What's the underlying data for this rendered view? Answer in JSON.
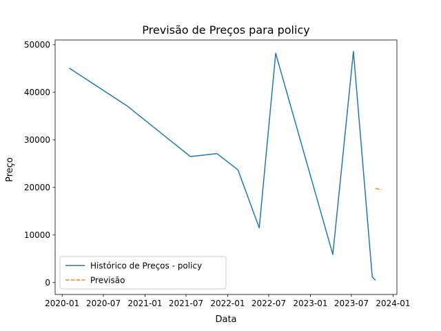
{
  "chart_data": {
    "type": "line",
    "title": "Previsão de Preços para policy",
    "xlabel": "Data",
    "ylabel": "Preço",
    "xlim": [
      "2019-12-01",
      "2024-01-18"
    ],
    "ylim": [
      -2500,
      51000
    ],
    "grid": false,
    "legend_position": "lower-left",
    "x_ticks": [
      "2020-01",
      "2020-07",
      "2021-01",
      "2021-07",
      "2022-01",
      "2022-07",
      "2023-01",
      "2023-07",
      "2024-01"
    ],
    "y_ticks": [
      0,
      10000,
      20000,
      30000,
      40000,
      50000
    ],
    "series": [
      {
        "name": "Histórico de Preços - policy",
        "color": "#1f77b4",
        "style": "solid",
        "points": [
          {
            "x": "2020-02-01",
            "y": 45100
          },
          {
            "x": "2020-10-15",
            "y": 37100
          },
          {
            "x": "2021-07-20",
            "y": 26500
          },
          {
            "x": "2021-11-15",
            "y": 27100
          },
          {
            "x": "2022-02-15",
            "y": 23700
          },
          {
            "x": "2022-05-20",
            "y": 11500
          },
          {
            "x": "2022-08-01",
            "y": 48200
          },
          {
            "x": "2023-04-10",
            "y": 5900
          },
          {
            "x": "2023-05-25",
            "y": 27000
          },
          {
            "x": "2023-07-10",
            "y": 48600
          },
          {
            "x": "2023-10-01",
            "y": 1200
          },
          {
            "x": "2023-10-15",
            "y": 500
          }
        ]
      },
      {
        "name": "Previsão",
        "color": "#ff7f0e",
        "style": "dashed",
        "points": [
          {
            "x": "2023-10-15",
            "y": 19800
          },
          {
            "x": "2023-11-10",
            "y": 19500
          }
        ]
      }
    ]
  }
}
